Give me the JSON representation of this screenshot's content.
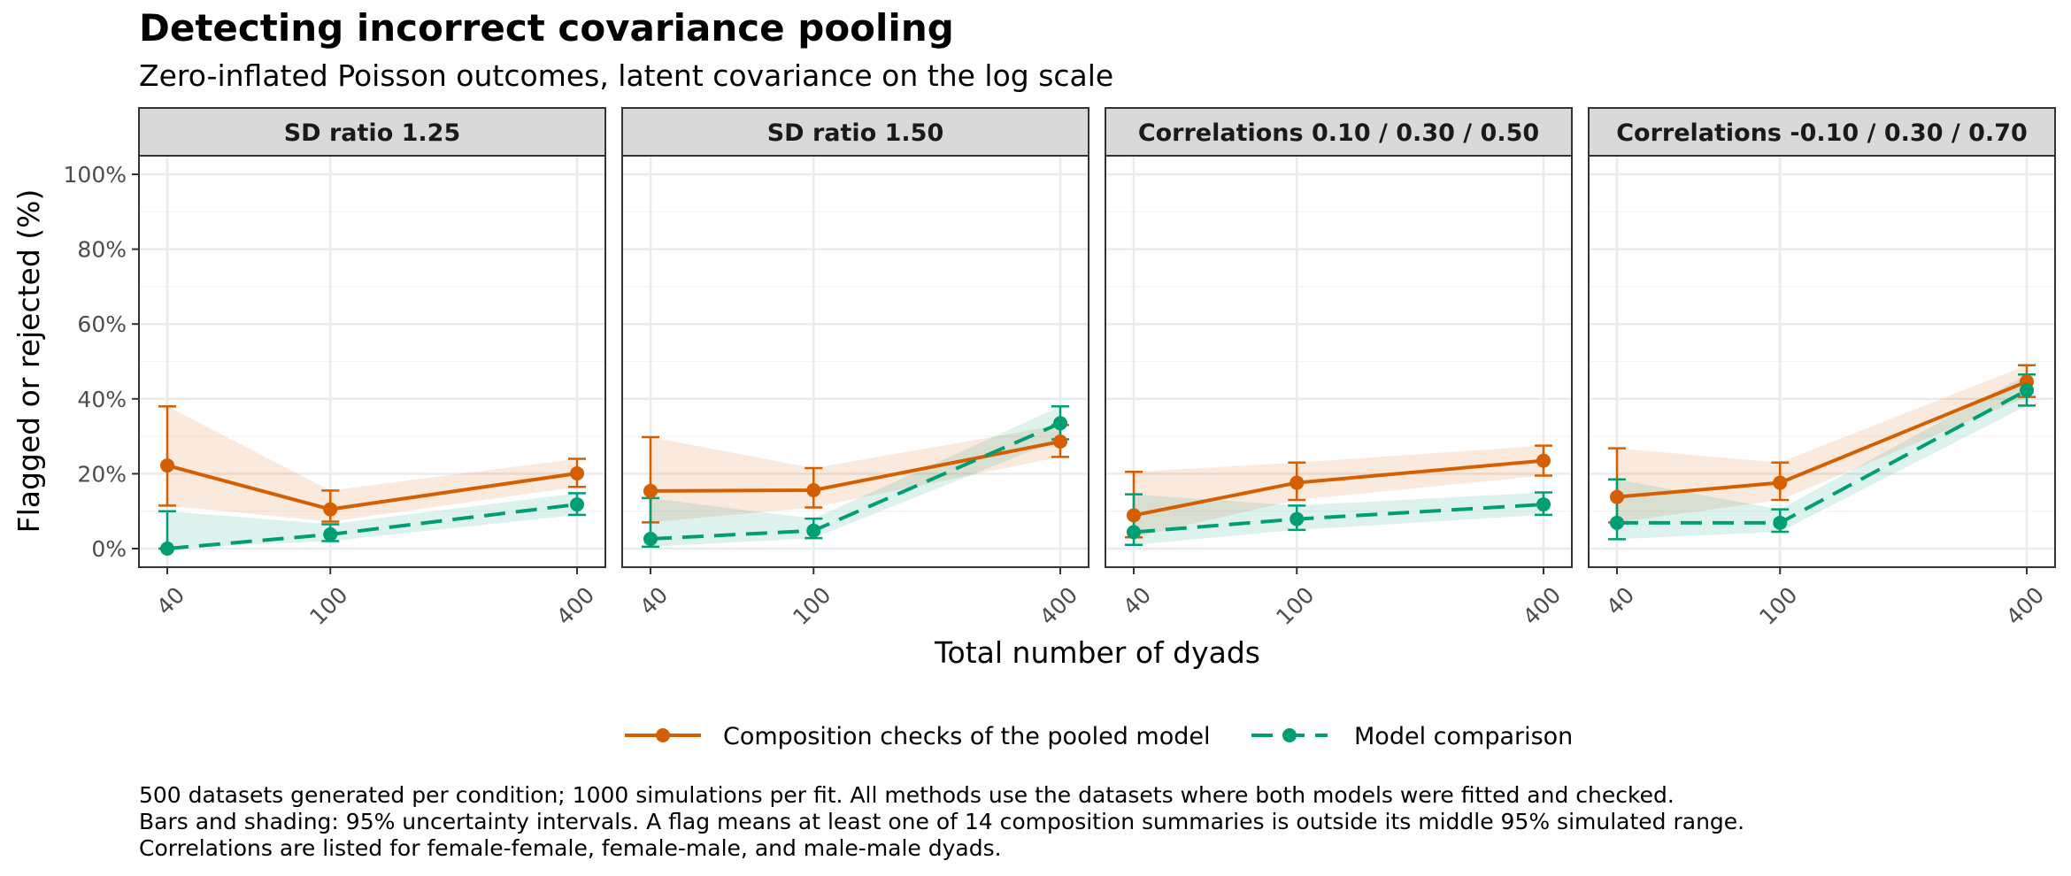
{
  "chart_data": {
    "type": "line",
    "title": "Detecting incorrect covariance pooling",
    "subtitle": "Zero-inflated Poisson outcomes, latent covariance on the log scale",
    "xlabel": "Total number of dyads",
    "ylabel": "Flagged or rejected (%)",
    "x_ticks": [
      40,
      100,
      400
    ],
    "x_tick_labels": [
      "40",
      "100",
      "400"
    ],
    "x_scale": "log",
    "ylim": [
      0,
      100
    ],
    "y_ticks": [
      0,
      20,
      40,
      60,
      80,
      100
    ],
    "y_tick_labels": [
      "0%",
      "20%",
      "40%",
      "60%",
      "80%",
      "100%"
    ],
    "grid": true,
    "legend_position": "bottom",
    "colors": {
      "composition": "#D55E00",
      "comparison": "#009E73"
    },
    "series_info": [
      {
        "key": "composition",
        "name": "Composition checks of the pooled model",
        "color": "#D55E00",
        "dash": "solid"
      },
      {
        "key": "comparison",
        "name": "Model comparison",
        "color": "#009E73",
        "dash": "dashed"
      }
    ],
    "panels": [
      {
        "label": "SD ratio 1.25",
        "series": [
          {
            "key": "composition",
            "x": [
              40,
              100,
              400
            ],
            "y": [
              22.2,
              10.5,
              20.1
            ],
            "lower": [
              11.5,
              7.2,
              16.5
            ],
            "upper": [
              38.0,
              15.5,
              24.0
            ]
          },
          {
            "key": "comparison",
            "x": [
              40,
              100,
              400
            ],
            "y": [
              0.0,
              3.8,
              11.8
            ],
            "lower": [
              0.0,
              2.0,
              9.0
            ],
            "upper": [
              10.0,
              6.5,
              14.8
            ]
          }
        ]
      },
      {
        "label": "SD ratio 1.50",
        "series": [
          {
            "key": "composition",
            "x": [
              40,
              100,
              400
            ],
            "y": [
              15.4,
              15.6,
              28.6
            ],
            "lower": [
              7.0,
              11.0,
              24.5
            ],
            "upper": [
              29.8,
              21.5,
              33.0
            ]
          },
          {
            "key": "comparison",
            "x": [
              40,
              100,
              400
            ],
            "y": [
              2.6,
              4.8,
              33.5
            ],
            "lower": [
              0.5,
              2.8,
              29.2
            ],
            "upper": [
              13.5,
              8.0,
              38.0
            ]
          }
        ]
      },
      {
        "label": "Correlations 0.10 / 0.30 / 0.50",
        "series": [
          {
            "key": "composition",
            "x": [
              40,
              100,
              400
            ],
            "y": [
              8.9,
              17.6,
              23.5
            ],
            "lower": [
              3.0,
              13.0,
              19.5
            ],
            "upper": [
              20.5,
              23.0,
              27.5
            ]
          },
          {
            "key": "comparison",
            "x": [
              40,
              100,
              400
            ],
            "y": [
              4.4,
              7.9,
              11.8
            ],
            "lower": [
              1.0,
              5.0,
              9.0
            ],
            "upper": [
              14.5,
              11.5,
              15.0
            ]
          }
        ]
      },
      {
        "label": "Correlations -0.10 / 0.30 / 0.70",
        "series": [
          {
            "key": "composition",
            "x": [
              40,
              100,
              400
            ],
            "y": [
              13.8,
              17.6,
              44.6
            ],
            "lower": [
              7.0,
              13.0,
              40.5
            ],
            "upper": [
              26.8,
              23.0,
              49.0
            ]
          },
          {
            "key": "comparison",
            "x": [
              40,
              100,
              400
            ],
            "y": [
              6.9,
              6.9,
              42.3
            ],
            "lower": [
              2.5,
              4.5,
              38.2
            ],
            "upper": [
              18.5,
              10.5,
              46.5
            ]
          }
        ]
      }
    ]
  },
  "caption_lines": [
    "500 datasets generated per condition; 1000 simulations per fit. All methods use the datasets where both models were fitted and checked.",
    "Bars and shading: 95% uncertainty intervals. A flag means at least one of 14 composition summaries is outside its middle 95% simulated range.",
    "Correlations are listed for female-female, female-male, and male-male dyads."
  ]
}
